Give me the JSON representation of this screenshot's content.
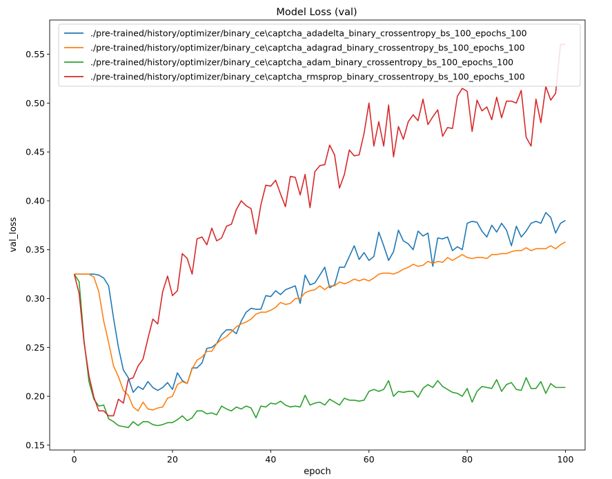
{
  "chart_data": {
    "type": "line",
    "title": "Model Loss (val)",
    "xlabel": "epoch",
    "ylabel": "val_loss",
    "xlim": [
      -5,
      104
    ],
    "ylim": [
      0.145,
      0.585
    ],
    "xticks": [
      "0",
      "20",
      "40",
      "60",
      "80",
      "100"
    ],
    "xtick_values": [
      0,
      20,
      40,
      60,
      80,
      100
    ],
    "yticks": [
      "0.15",
      "0.20",
      "0.25",
      "0.30",
      "0.35",
      "0.40",
      "0.45",
      "0.50",
      "0.55"
    ],
    "ytick_values": [
      0.15,
      0.2,
      0.25,
      0.3,
      0.35,
      0.4,
      0.45,
      0.5,
      0.55
    ],
    "legend_position": "top-right",
    "grid": false,
    "series": [
      {
        "name": "./pre-trained/history/optimizer/binary_ce\\captcha_adadelta_binary_crossentropy_bs_100_epochs_100",
        "color": "#1f77b4",
        "values": [
          0.325,
          0.325,
          0.325,
          0.325,
          0.325,
          0.324,
          0.321,
          0.313,
          0.28,
          0.25,
          0.227,
          0.219,
          0.204,
          0.21,
          0.207,
          0.215,
          0.209,
          0.206,
          0.209,
          0.214,
          0.207,
          0.224,
          0.216,
          0.213,
          0.229,
          0.229,
          0.234,
          0.249,
          0.25,
          0.254,
          0.263,
          0.268,
          0.268,
          0.264,
          0.277,
          0.286,
          0.29,
          0.289,
          0.289,
          0.303,
          0.302,
          0.308,
          0.304,
          0.309,
          0.311,
          0.313,
          0.295,
          0.324,
          0.314,
          0.316,
          0.324,
          0.332,
          0.311,
          0.314,
          0.332,
          0.332,
          0.343,
          0.354,
          0.34,
          0.347,
          0.339,
          0.343,
          0.368,
          0.354,
          0.339,
          0.348,
          0.37,
          0.359,
          0.356,
          0.35,
          0.369,
          0.364,
          0.367,
          0.333,
          0.362,
          0.361,
          0.363,
          0.349,
          0.353,
          0.35,
          0.377,
          0.379,
          0.378,
          0.369,
          0.363,
          0.375,
          0.368,
          0.377,
          0.37,
          0.354,
          0.374,
          0.363,
          0.369,
          0.377,
          0.379,
          0.377,
          0.388,
          0.383,
          0.367,
          0.377,
          0.38
        ]
      },
      {
        "name": "./pre-trained/history/optimizer/binary_ce\\captcha_adagrad_binary_crossentropy_bs_100_epochs_100",
        "color": "#ff7f0e",
        "values": [
          0.325,
          0.325,
          0.325,
          0.325,
          0.322,
          0.307,
          0.277,
          0.255,
          0.231,
          0.22,
          0.206,
          0.201,
          0.189,
          0.185,
          0.194,
          0.187,
          0.186,
          0.188,
          0.189,
          0.198,
          0.2,
          0.212,
          0.215,
          0.213,
          0.228,
          0.237,
          0.24,
          0.246,
          0.246,
          0.254,
          0.258,
          0.261,
          0.266,
          0.271,
          0.274,
          0.276,
          0.279,
          0.284,
          0.286,
          0.286,
          0.288,
          0.291,
          0.296,
          0.294,
          0.295,
          0.3,
          0.3,
          0.306,
          0.308,
          0.309,
          0.313,
          0.309,
          0.313,
          0.313,
          0.317,
          0.315,
          0.317,
          0.32,
          0.318,
          0.32,
          0.318,
          0.321,
          0.325,
          0.326,
          0.326,
          0.325,
          0.327,
          0.33,
          0.332,
          0.335,
          0.333,
          0.334,
          0.338,
          0.336,
          0.338,
          0.337,
          0.342,
          0.339,
          0.342,
          0.345,
          0.342,
          0.341,
          0.342,
          0.342,
          0.341,
          0.345,
          0.345,
          0.346,
          0.346,
          0.348,
          0.349,
          0.349,
          0.352,
          0.349,
          0.351,
          0.351,
          0.351,
          0.354,
          0.351,
          0.355,
          0.358
        ]
      },
      {
        "name": "./pre-trained/history/optimizer/binary_ce\\captcha_adam_binary_crossentropy_bs_100_epochs_100",
        "color": "#2ca02c",
        "values": [
          0.325,
          0.317,
          0.257,
          0.215,
          0.197,
          0.19,
          0.191,
          0.177,
          0.174,
          0.17,
          0.169,
          0.168,
          0.174,
          0.17,
          0.174,
          0.174,
          0.171,
          0.17,
          0.171,
          0.173,
          0.173,
          0.176,
          0.18,
          0.175,
          0.178,
          0.185,
          0.185,
          0.182,
          0.183,
          0.181,
          0.19,
          0.187,
          0.185,
          0.189,
          0.187,
          0.19,
          0.188,
          0.178,
          0.19,
          0.189,
          0.193,
          0.192,
          0.195,
          0.191,
          0.189,
          0.19,
          0.189,
          0.201,
          0.191,
          0.193,
          0.194,
          0.191,
          0.197,
          0.194,
          0.191,
          0.198,
          0.196,
          0.196,
          0.195,
          0.196,
          0.205,
          0.207,
          0.205,
          0.207,
          0.216,
          0.2,
          0.205,
          0.204,
          0.205,
          0.205,
          0.199,
          0.208,
          0.212,
          0.209,
          0.216,
          0.21,
          0.207,
          0.204,
          0.203,
          0.2,
          0.208,
          0.194,
          0.205,
          0.21,
          0.209,
          0.208,
          0.217,
          0.205,
          0.212,
          0.214,
          0.207,
          0.206,
          0.219,
          0.208,
          0.208,
          0.215,
          0.203,
          0.213,
          0.209,
          0.209,
          0.209
        ]
      },
      {
        "name": "./pre-trained/history/optimizer/binary_ce\\captcha_rmsprop_binary_crossentropy_bs_100_epochs_100",
        "color": "#d62728",
        "values": [
          0.325,
          0.305,
          0.255,
          0.221,
          0.199,
          0.185,
          0.185,
          0.18,
          0.18,
          0.197,
          0.193,
          0.217,
          0.219,
          0.231,
          0.238,
          0.259,
          0.279,
          0.274,
          0.307,
          0.323,
          0.303,
          0.308,
          0.346,
          0.341,
          0.325,
          0.361,
          0.363,
          0.355,
          0.372,
          0.359,
          0.362,
          0.374,
          0.376,
          0.391,
          0.4,
          0.395,
          0.392,
          0.366,
          0.396,
          0.416,
          0.415,
          0.421,
          0.407,
          0.394,
          0.425,
          0.424,
          0.406,
          0.427,
          0.393,
          0.43,
          0.436,
          0.437,
          0.457,
          0.447,
          0.413,
          0.427,
          0.452,
          0.446,
          0.447,
          0.469,
          0.5,
          0.456,
          0.481,
          0.456,
          0.498,
          0.445,
          0.476,
          0.463,
          0.481,
          0.488,
          0.482,
          0.504,
          0.478,
          0.486,
          0.493,
          0.466,
          0.475,
          0.474,
          0.507,
          0.515,
          0.512,
          0.471,
          0.503,
          0.492,
          0.496,
          0.483,
          0.506,
          0.485,
          0.502,
          0.502,
          0.5,
          0.513,
          0.465,
          0.456,
          0.504,
          0.48,
          0.517,
          0.503,
          0.51,
          0.56,
          0.56
        ]
      }
    ]
  }
}
